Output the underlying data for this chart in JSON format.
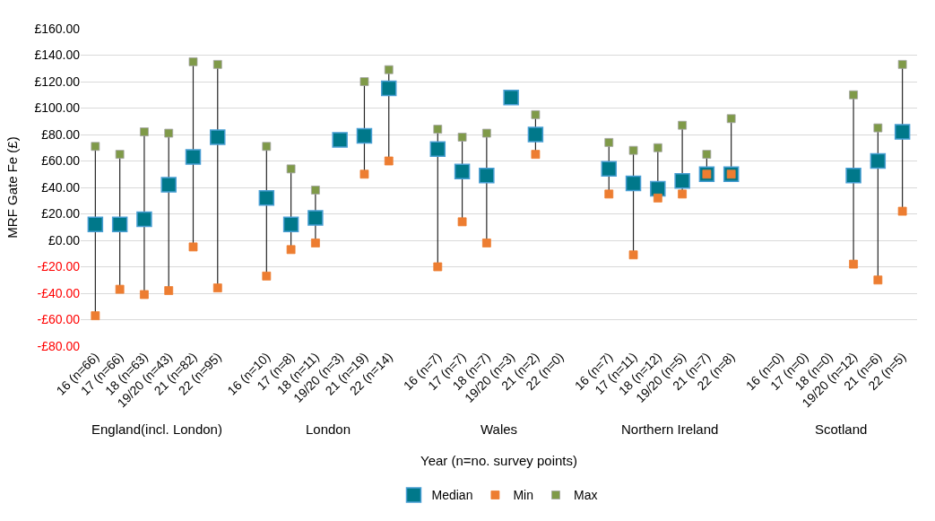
{
  "chart_data": {
    "type": "scatter",
    "ylabel": "MRF Gate Fe (£)",
    "xlabel": "Year (n=no. survey points)",
    "categories": [
      "16 (n=66)",
      "17 (n=66)",
      "18 (n=63)",
      "19/20 (n=43)",
      "21 (n=82)",
      "22 (n=95)",
      null,
      "16 (n=10)",
      "17 (n=8)",
      "18 (n=11)",
      "19/20 (n=3)",
      "21 (n=19)",
      "22 (n=14)",
      null,
      "16 (n=7)",
      "17 (n=7)",
      "18 (n=7)",
      "19/20 (n=3)",
      "21 (n=2)",
      "22 (n=0)",
      null,
      "16 (n=7)",
      "17 (n=11)",
      "18 (n=12)",
      "19/20 (n=5)",
      "21 (n=7)",
      "22 (n=8)",
      null,
      "16 (n=0)",
      "17 (n=0)",
      "18 (n=0)",
      "19/20 (n=12)",
      "21 (n=6)",
      "22 (n=5)"
    ],
    "annotations": [
      "England(incl. London)",
      "London",
      "Wales",
      "Northern Ireland",
      "Scotland"
    ],
    "series": [
      {
        "name": "Median",
        "color": "#00788a",
        "values": [
          12,
          12,
          16,
          42,
          63,
          78,
          null,
          32,
          12,
          17,
          76,
          79,
          115,
          null,
          69,
          52,
          49,
          108,
          80,
          null,
          null,
          54,
          43,
          39,
          45,
          50,
          50,
          null,
          null,
          null,
          null,
          49,
          60,
          82
        ]
      },
      {
        "name": "Min",
        "color": "#ed7d31",
        "values": [
          -57,
          -37,
          -41,
          -38,
          -5,
          -36,
          null,
          -27,
          -7,
          -2,
          null,
          50,
          60,
          null,
          -20,
          14,
          -2,
          null,
          65,
          null,
          null,
          35,
          -11,
          32,
          35,
          50,
          50,
          null,
          null,
          null,
          null,
          -18,
          -30,
          22
        ]
      },
      {
        "name": "Max",
        "color": "#7f9a48",
        "values": [
          71,
          65,
          82,
          81,
          135,
          133,
          null,
          71,
          54,
          38,
          null,
          120,
          129,
          null,
          84,
          78,
          81,
          null,
          95,
          null,
          null,
          74,
          68,
          70,
          87,
          65,
          92,
          null,
          null,
          null,
          null,
          110,
          85,
          133
        ]
      }
    ],
    "ylim": [
      -80,
      160
    ],
    "yticks": [
      {
        "value": -80,
        "label": "-£80.00"
      },
      {
        "value": -60,
        "label": "-£60.00"
      },
      {
        "value": -40,
        "label": "-£40.00"
      },
      {
        "value": -20,
        "label": "-£20.00"
      },
      {
        "value": 0,
        "label": "£0.00"
      },
      {
        "value": 20,
        "label": "£20.00"
      },
      {
        "value": 40,
        "label": "£40.00"
      },
      {
        "value": 60,
        "label": "£60.00"
      },
      {
        "value": 80,
        "label": "£80.00"
      },
      {
        "value": 100,
        "label": "£100.00"
      },
      {
        "value": 120,
        "label": "£120.00"
      },
      {
        "value": 140,
        "label": "£140.00"
      },
      {
        "value": 160,
        "label": "£160.00"
      }
    ],
    "grid": "y",
    "legend": "bottom",
    "marker": "square"
  }
}
